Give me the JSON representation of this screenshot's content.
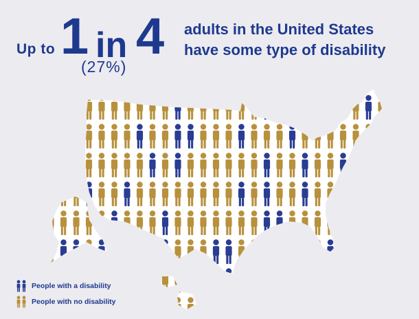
{
  "headline": {
    "prefix": "Up to",
    "number_one": "1",
    "word_in": "in",
    "number_four": "4",
    "percent": "(27%)",
    "line1": "adults in the United States",
    "line2": "have some type of disability"
  },
  "legend": {
    "disability_label": "People with a disability",
    "no_disability_label": "People with no disability"
  },
  "colors": {
    "disability": "#2a3d93",
    "no_disability": "#b8913e",
    "background": "#ecebf0",
    "map_fill": "#ffffff",
    "text": "#1e3a8f"
  },
  "share_with_disability": 0.27
}
